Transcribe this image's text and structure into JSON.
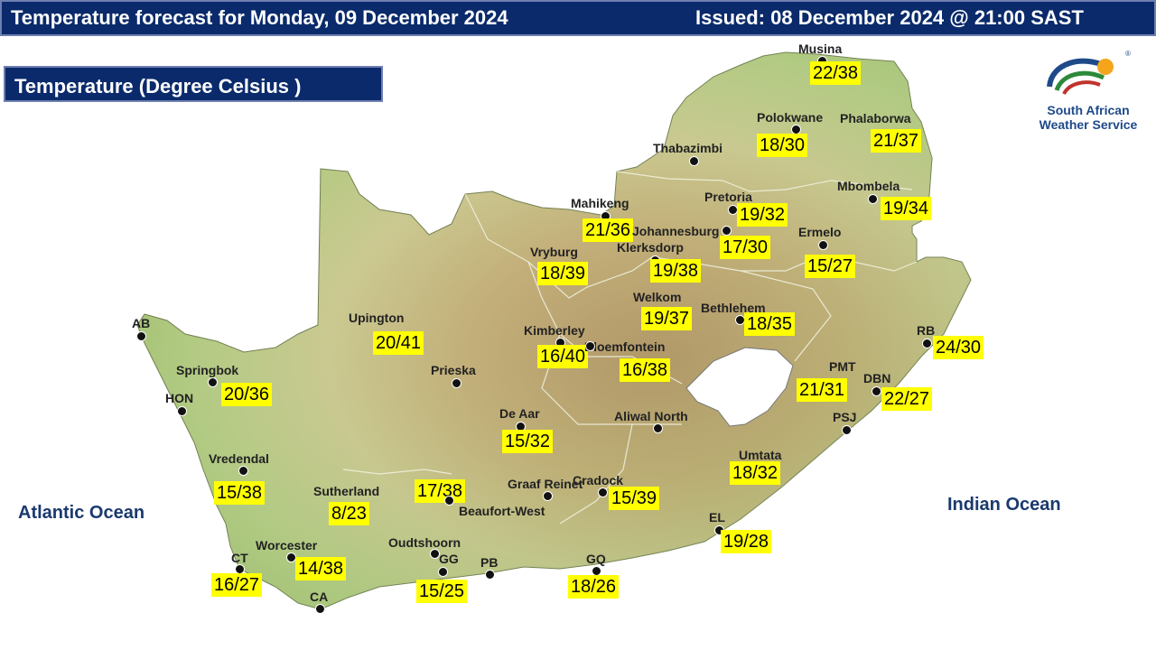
{
  "header": {
    "title": "Temperature forecast for Monday, 09 December 2024",
    "issued": "Issued: 08 December 2024  @ 21:00 SAST"
  },
  "legend": {
    "title": "Temperature (Degree Celsius )"
  },
  "logo": {
    "name_line1": "South African",
    "name_line2": "Weather Service",
    "icon": "saws-logo-icon",
    "registered": "®"
  },
  "oceans": {
    "atlantic": "Atlantic Ocean",
    "indian": "Indian Ocean"
  },
  "colors": {
    "header_bg": "#0a2a6b",
    "label_bg": "#ffff00",
    "land_low": "#b9cf7a",
    "land_high": "#a0703c"
  },
  "cities": [
    {
      "name": "Musina",
      "temp": "22/38"
    },
    {
      "name": "Polokwane",
      "temp": "18/30"
    },
    {
      "name": "Phalaborwa",
      "temp": "21/37"
    },
    {
      "name": "Thabazimbi",
      "temp": ""
    },
    {
      "name": "Mbombela",
      "temp": "19/34"
    },
    {
      "name": "Pretoria",
      "temp": "19/32"
    },
    {
      "name": "Mahikeng",
      "temp": "21/36"
    },
    {
      "name": "Johannesburg",
      "temp": "17/30"
    },
    {
      "name": "Klerksdorp",
      "temp": "19/38"
    },
    {
      "name": "Ermelo",
      "temp": "15/27"
    },
    {
      "name": "Vryburg",
      "temp": "18/39"
    },
    {
      "name": "Welkom",
      "temp": "19/37"
    },
    {
      "name": "Bethlehem",
      "temp": "18/35"
    },
    {
      "name": "Upington",
      "temp": "20/41"
    },
    {
      "name": "Kimberley",
      "temp": "16/40"
    },
    {
      "name": "Bloemfontein",
      "temp": "16/38"
    },
    {
      "name": "RB",
      "temp": "24/30"
    },
    {
      "name": "AB",
      "temp": ""
    },
    {
      "name": "Springbok",
      "temp": "20/36"
    },
    {
      "name": "HON",
      "temp": ""
    },
    {
      "name": "Prieska",
      "temp": ""
    },
    {
      "name": "PMT",
      "temp": "21/31"
    },
    {
      "name": "DBN",
      "temp": "22/27"
    },
    {
      "name": "De Aar",
      "temp": "15/32"
    },
    {
      "name": "Aliwal North",
      "temp": ""
    },
    {
      "name": "PSJ",
      "temp": ""
    },
    {
      "name": "Umtata",
      "temp": "18/32"
    },
    {
      "name": "Vredendal",
      "temp": "15/38"
    },
    {
      "name": "Sutherland",
      "temp": "8/23"
    },
    {
      "name": "Beaufort-West",
      "temp": "17/38"
    },
    {
      "name": "Graaf Reinet",
      "temp": ""
    },
    {
      "name": "Cradock",
      "temp": "15/39"
    },
    {
      "name": "EL",
      "temp": "19/28"
    },
    {
      "name": "Worcester",
      "temp": "14/38"
    },
    {
      "name": "CT",
      "temp": "16/27"
    },
    {
      "name": "Oudtshoorn",
      "temp": ""
    },
    {
      "name": "GG",
      "temp": "15/25"
    },
    {
      "name": "PB",
      "temp": ""
    },
    {
      "name": "GQ",
      "temp": "18/26"
    },
    {
      "name": "CA",
      "temp": ""
    }
  ]
}
